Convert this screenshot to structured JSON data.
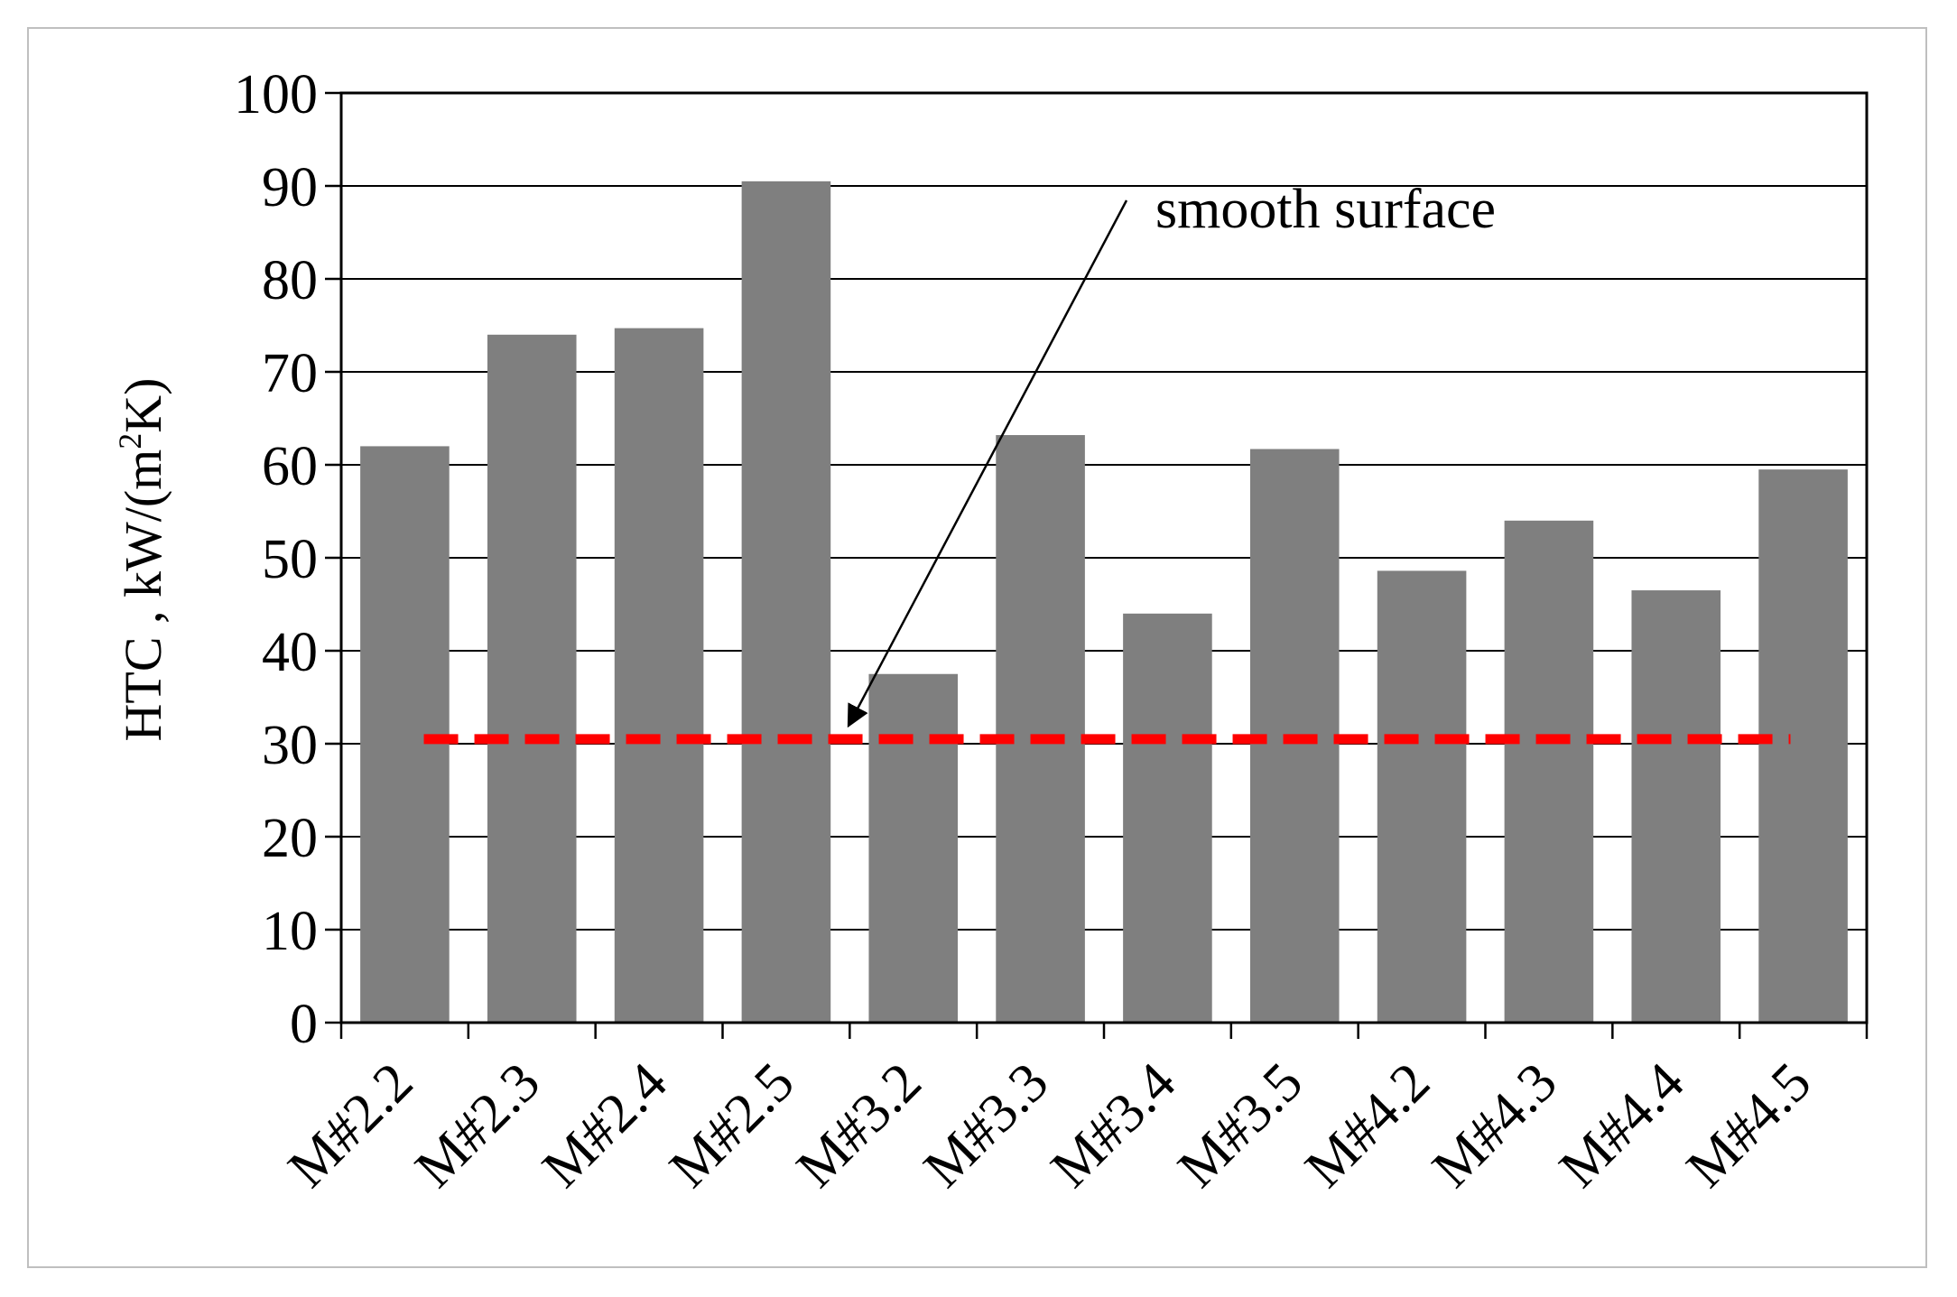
{
  "chart_data": {
    "type": "bar",
    "categories": [
      "M#2.2",
      "M#2.3",
      "M#2.4",
      "M#2.5",
      "M#3.2",
      "M#3.3",
      "M#3.4",
      "M#3.5",
      "M#4.2",
      "M#4.3",
      "M#4.4",
      "M#4.5"
    ],
    "values": [
      62,
      74,
      74.7,
      90.5,
      37.5,
      63.2,
      44,
      61.7,
      48.6,
      54,
      46.5,
      59.5
    ],
    "title": "",
    "xlabel": "",
    "ylabel": "HTC , kW/(m²K)",
    "ylabel_parts": {
      "before": "HTC , kW/(m",
      "sup": "2",
      "after": "K)"
    },
    "ylim": [
      0,
      100
    ],
    "yticks": [
      "0",
      "10",
      "20",
      "30",
      "40",
      "50",
      "60",
      "70",
      "80",
      "90",
      "100"
    ],
    "grid": true,
    "bar_color": "#7f7f7f",
    "reference_line": {
      "value": 30.5,
      "color": "#ff0000",
      "style": "dashed"
    },
    "annotation": "smooth surface"
  }
}
